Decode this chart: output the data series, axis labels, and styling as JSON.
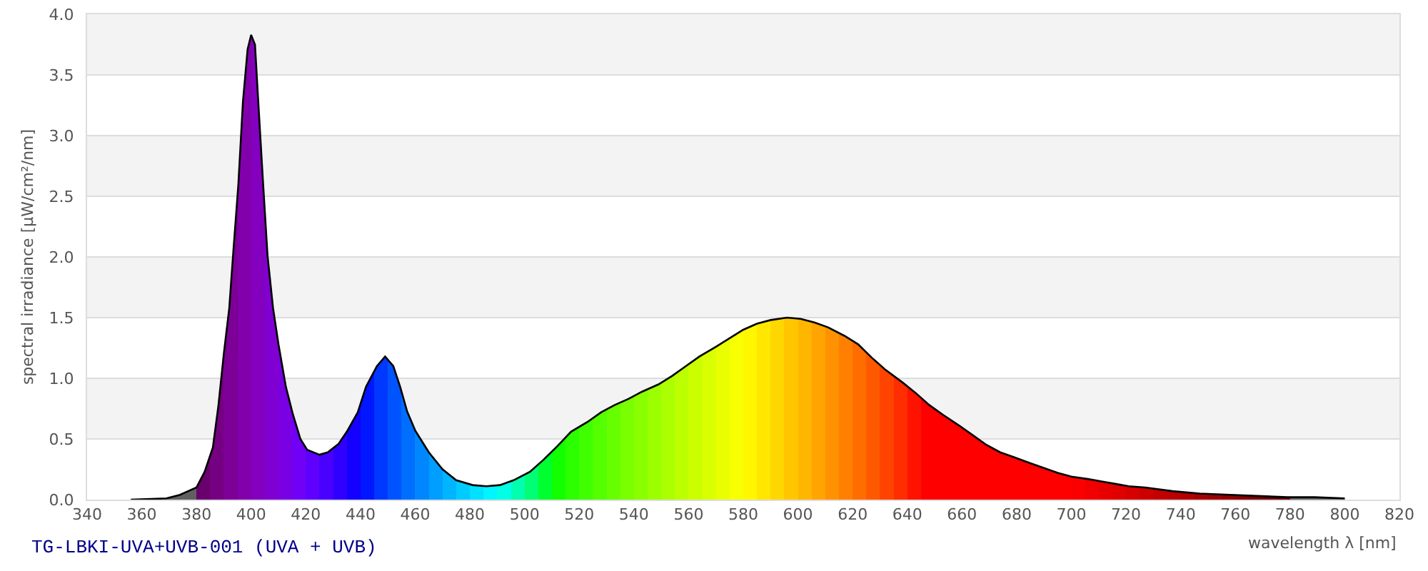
{
  "chart_data": {
    "type": "area",
    "xlabel": "wavelength λ [nm]",
    "ylabel": "spectral irradiance [µW/cm²/nm]",
    "annotations": [
      "TG-LBKI-UVA+UVB-001 (UVA + UVB)"
    ],
    "x": [
      356,
      369,
      374,
      380,
      383,
      386,
      388,
      390,
      392,
      393.5,
      395.3,
      397,
      398.7,
      400,
      401.4,
      402.6,
      404.3,
      406,
      408,
      410,
      412.7,
      415.3,
      418,
      420.5,
      425,
      428,
      432,
      435,
      439,
      442,
      446,
      449,
      452,
      454.5,
      457,
      460,
      465,
      470,
      475,
      481,
      486,
      491,
      496,
      502,
      507,
      512,
      517,
      523,
      528,
      533,
      538,
      543,
      549,
      554,
      559,
      564,
      570,
      575,
      580,
      585,
      590,
      596,
      601,
      606,
      611,
      617,
      622,
      627,
      632,
      638,
      643,
      648,
      653,
      659,
      664,
      669,
      674,
      679,
      685,
      690,
      695,
      700,
      706,
      711,
      716,
      721,
      727,
      737,
      747,
      758,
      768,
      779,
      789,
      800
    ],
    "values": [
      0,
      0.01,
      0.04,
      0.1,
      0.23,
      0.43,
      0.77,
      1.2,
      1.58,
      2.05,
      2.59,
      3.28,
      3.71,
      3.83,
      3.75,
      3.28,
      2.63,
      2.01,
      1.58,
      1.28,
      0.93,
      0.7,
      0.5,
      0.41,
      0.37,
      0.39,
      0.46,
      0.56,
      0.72,
      0.93,
      1.1,
      1.18,
      1.1,
      0.93,
      0.73,
      0.57,
      0.39,
      0.25,
      0.16,
      0.12,
      0.11,
      0.12,
      0.16,
      0.23,
      0.33,
      0.44,
      0.56,
      0.64,
      0.72,
      0.78,
      0.83,
      0.89,
      0.95,
      1.02,
      1.1,
      1.18,
      1.26,
      1.33,
      1.4,
      1.45,
      1.48,
      1.5,
      1.49,
      1.46,
      1.42,
      1.35,
      1.28,
      1.17,
      1.07,
      0.97,
      0.88,
      0.78,
      0.7,
      0.61,
      0.53,
      0.45,
      0.39,
      0.35,
      0.3,
      0.26,
      0.22,
      0.19,
      0.17,
      0.15,
      0.13,
      0.11,
      0.1,
      0.07,
      0.05,
      0.04,
      0.03,
      0.02,
      0.02,
      0.01
    ],
    "color": "#000000",
    "xlim": [
      340,
      820
    ],
    "xticks": [
      340,
      360,
      380,
      400,
      420,
      440,
      460,
      480,
      500,
      520,
      540,
      560,
      580,
      600,
      620,
      640,
      660,
      680,
      700,
      720,
      740,
      760,
      780,
      800,
      820
    ],
    "ylim": [
      0,
      4
    ],
    "yticks": [
      {
        "value": 0,
        "label": "0.0"
      },
      0.5,
      {
        "value": 1,
        "label": "1.0"
      },
      1.5,
      {
        "value": 2,
        "label": "2.0"
      },
      2.5,
      {
        "value": 3,
        "label": "3.0"
      },
      3.5,
      {
        "value": 4,
        "label": "4.0"
      }
    ],
    "grid": "y"
  }
}
